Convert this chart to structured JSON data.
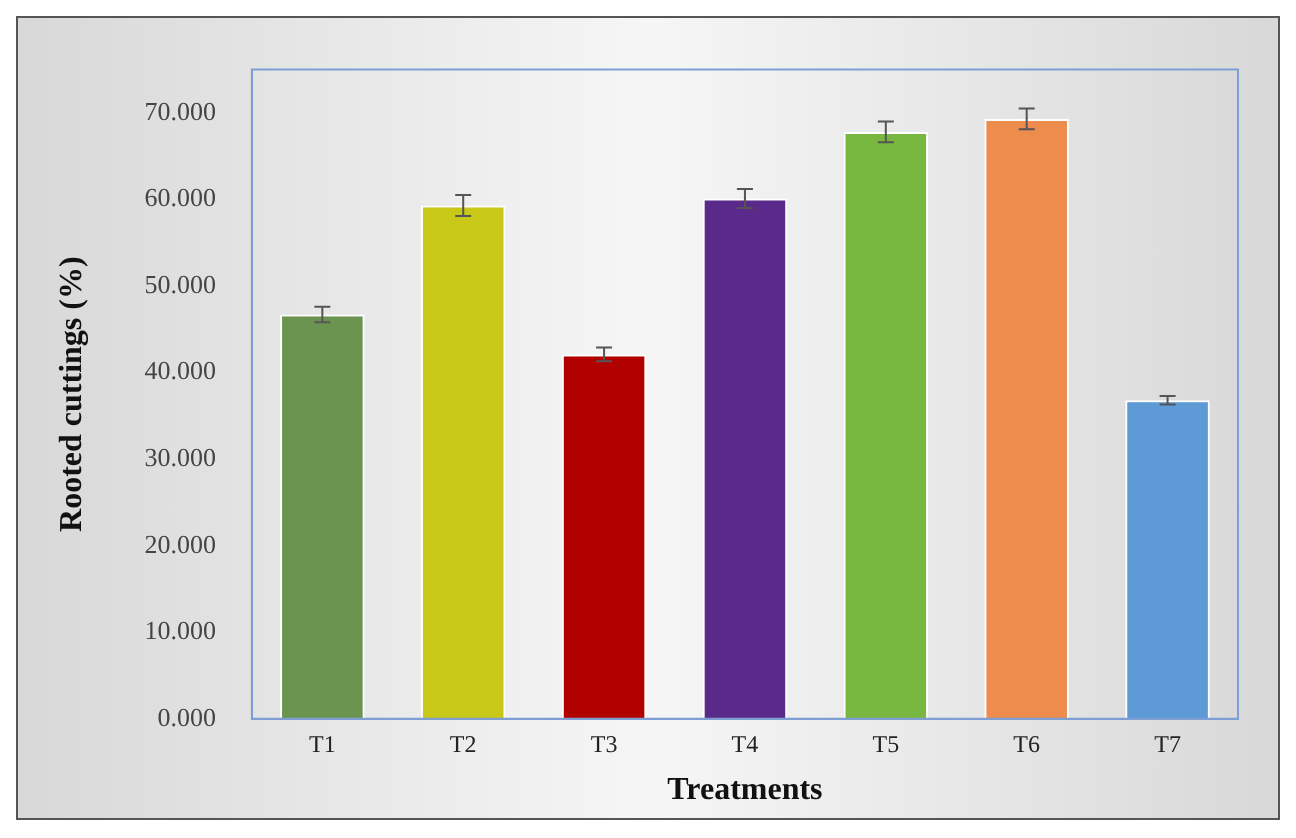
{
  "chart_data": {
    "type": "bar",
    "xlabel": "Treatments",
    "ylabel": "Rooted cuttings (%)",
    "categories": [
      "T1",
      "T2",
      "T3",
      "T4",
      "T5",
      "T6",
      "T7"
    ],
    "values": [
      46.7,
      59.3,
      42.1,
      60.1,
      67.8,
      69.3,
      36.8
    ],
    "errors": [
      0.9,
      1.2,
      0.8,
      1.1,
      1.2,
      1.2,
      0.5
    ],
    "colors": [
      "#6a9450",
      "#c8c818",
      "#b00000",
      "#5a2a8a",
      "#78b840",
      "#ee8c4e",
      "#5d9ad6"
    ],
    "ylim": [
      0,
      75
    ],
    "yticks": [
      {
        "value": 0,
        "label": "0.000"
      },
      {
        "value": 10,
        "label": "10.000"
      },
      {
        "value": 20,
        "label": "20.000"
      },
      {
        "value": 30,
        "label": "30.000"
      },
      {
        "value": 40,
        "label": "40.000"
      },
      {
        "value": 50,
        "label": "50.000"
      },
      {
        "value": 60,
        "label": "60.000"
      },
      {
        "value": 70,
        "label": "70.000"
      }
    ],
    "grid": false,
    "legend": false
  }
}
